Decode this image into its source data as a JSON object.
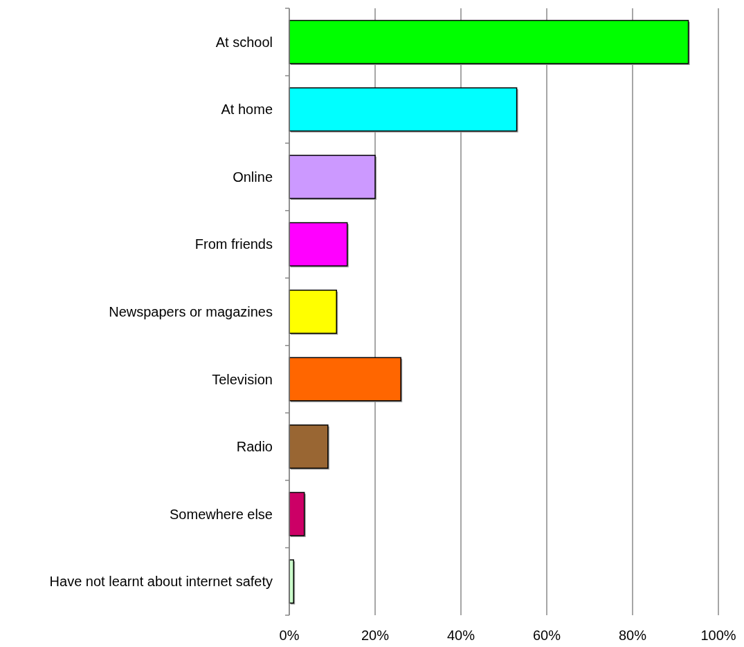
{
  "chart_data": {
    "type": "bar",
    "orientation": "horizontal",
    "categories": [
      "At school",
      "At home",
      "Online",
      "From friends",
      "Newspapers or magazines",
      "Television",
      "Radio",
      "Somewhere else",
      "Have not learnt about internet safety"
    ],
    "values": [
      93,
      53,
      20,
      13.5,
      11,
      26,
      9,
      3.5,
      1
    ],
    "colors": [
      "#00ff00",
      "#00ffff",
      "#cc99ff",
      "#ff00ff",
      "#ffff00",
      "#ff6600",
      "#996633",
      "#cc0066",
      "#ccffcc"
    ],
    "xlim": [
      0,
      100
    ],
    "xticks": [
      {
        "value": 0,
        "label": "0%"
      },
      {
        "value": 20,
        "label": "20%"
      },
      {
        "value": 40,
        "label": "40%"
      },
      {
        "value": 60,
        "label": "60%"
      },
      {
        "value": 80,
        "label": "80%"
      },
      {
        "value": 100,
        "label": "100%"
      }
    ],
    "grid": "x"
  }
}
